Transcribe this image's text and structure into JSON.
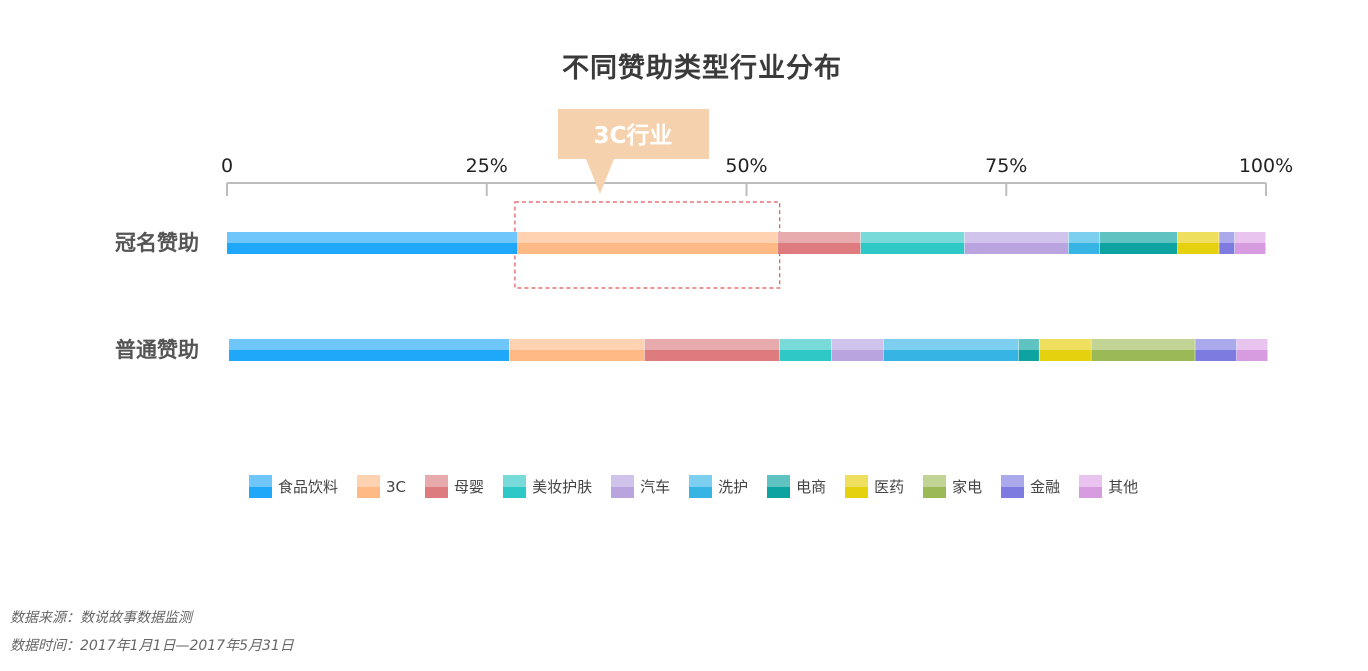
{
  "chart_data": {
    "type": "bar",
    "stacked": true,
    "orientation": "horizontal",
    "title": "不同赞助类型行业分布",
    "x_ticks": [
      "0",
      "25%",
      "50%",
      "75%",
      "100%"
    ],
    "xlim": [
      0,
      100
    ],
    "categories": [
      "冠名赞助",
      "普通赞助"
    ],
    "series": [
      {
        "name": "食品饮料",
        "values": [
          28,
          27
        ],
        "color": "#1fa7f9",
        "light": "#6ec6fb"
      },
      {
        "name": "3C",
        "values": [
          25,
          13
        ],
        "color": "#ffb985",
        "light": "#ffd2b1"
      },
      {
        "name": "母婴",
        "values": [
          8,
          13
        ],
        "color": "#de7b7e",
        "light": "#e8abad"
      },
      {
        "name": "美妆护肤",
        "values": [
          10,
          5
        ],
        "color": "#2ec8c6",
        "light": "#79dbd9"
      },
      {
        "name": "汽车",
        "values": [
          10,
          5
        ],
        "color": "#b9a4e0",
        "light": "#d1c4ec"
      },
      {
        "name": "洗护",
        "values": [
          3,
          13
        ],
        "color": "#36b4e4",
        "light": "#7ccfef"
      },
      {
        "name": "电商",
        "values": [
          7.5,
          2
        ],
        "color": "#0da3a0",
        "light": "#5fc3c1"
      },
      {
        "name": "医药",
        "values": [
          4,
          5
        ],
        "color": "#e6d10e",
        "light": "#efdf5e"
      },
      {
        "name": "家电",
        "values": [
          0,
          10
        ],
        "color": "#9cb958",
        "light": "#c1d496"
      },
      {
        "name": "金融",
        "values": [
          1.5,
          4
        ],
        "color": "#7d7bdf",
        "light": "#aaa9eb"
      },
      {
        "name": "其他",
        "values": [
          3,
          3
        ],
        "color": "#d79be0",
        "light": "#e8c4ee"
      }
    ],
    "annotation": {
      "label": "3C行业",
      "highlight_series": "3C",
      "highlight_category": "冠名赞助"
    },
    "grid": false,
    "legend_position": "bottom"
  },
  "footer": {
    "source": "数据来源：数说故事数据监测",
    "period": "数据时间：2017年1月1日—2017年5月31日"
  }
}
